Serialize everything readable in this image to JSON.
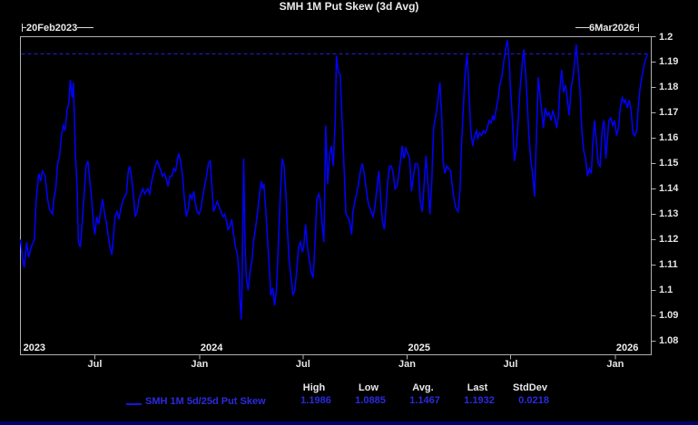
{
  "title": "SMH 1M Put Skew (3d Avg)",
  "range": {
    "start_label": "20Feb2023",
    "end_label": "6Mar2026"
  },
  "legend": {
    "series_label": "SMH 1M 5d/25d Put Skew"
  },
  "stats": {
    "headers": [
      "High",
      "Low",
      "Avg.",
      "Last",
      "StdDev"
    ],
    "values": [
      "1.1986",
      "1.0885",
      "1.1467",
      "1.1932",
      "0.0218"
    ]
  },
  "colors": {
    "background": "#000000",
    "series_line": "#0202f2",
    "reference_line": "#2020d8",
    "frame": "#b0b0b0",
    "text": "#e8e8e8",
    "legend_text": "#2a2ae0",
    "bottom_strip": "#00006a"
  },
  "chart_data": {
    "type": "line",
    "title": "SMH 1M Put Skew (3d Avg)",
    "series_name": "SMH 1M 5d/25d Put Skew",
    "x_range": {
      "start": "2023-02-20",
      "end": "2026-03-06"
    },
    "ylim": [
      1.0746,
      1.2
    ],
    "grid": false,
    "y_ticks": [
      {
        "v": 1.2,
        "label": "1.2"
      },
      {
        "v": 1.19,
        "label": "1.19"
      },
      {
        "v": 1.18,
        "label": "1.18"
      },
      {
        "v": 1.17,
        "label": "1.17"
      },
      {
        "v": 1.16,
        "label": "1.16"
      },
      {
        "v": 1.15,
        "label": "1.15"
      },
      {
        "v": 1.14,
        "label": "1.14"
      },
      {
        "v": 1.13,
        "label": "1.13"
      },
      {
        "v": 1.12,
        "label": "1.12"
      },
      {
        "v": 1.11,
        "label": "1.11"
      },
      {
        "v": 1.1,
        "label": "1.1"
      },
      {
        "v": 1.09,
        "label": "1.09"
      },
      {
        "v": 1.08,
        "label": "1.08"
      }
    ],
    "x_ticks": [
      {
        "t": 0.118,
        "label": "Jul"
      },
      {
        "t": 0.284,
        "label": "Jan"
      },
      {
        "t": 0.448,
        "label": "Jul"
      },
      {
        "t": 0.613,
        "label": "Jan"
      },
      {
        "t": 0.777,
        "label": "Jul"
      },
      {
        "t": 0.943,
        "label": "Jan"
      }
    ],
    "year_labels": [
      {
        "t": 0.003,
        "label": "2023"
      },
      {
        "t": 0.284,
        "label": "2024"
      },
      {
        "t": 0.613,
        "label": "2025"
      },
      {
        "t": 0.943,
        "label": "2026"
      }
    ],
    "reference_line": {
      "value": 1.1932,
      "meaning": "Last",
      "style": "dashed"
    },
    "high": 1.1986,
    "low": 1.0885,
    "avg": 1.1467,
    "last": 1.1932,
    "stddev": 0.0218,
    "points": [
      [
        0.0,
        1.12
      ],
      [
        0.003,
        1.113
      ],
      [
        0.006,
        1.109
      ],
      [
        0.01,
        1.119
      ],
      [
        0.013,
        1.113
      ],
      [
        0.017,
        1.117
      ],
      [
        0.022,
        1.12
      ],
      [
        0.025,
        1.136
      ],
      [
        0.029,
        1.146
      ],
      [
        0.032,
        1.143
      ],
      [
        0.035,
        1.147
      ],
      [
        0.039,
        1.145
      ],
      [
        0.043,
        1.136
      ],
      [
        0.046,
        1.132
      ],
      [
        0.051,
        1.13
      ],
      [
        0.053,
        1.136
      ],
      [
        0.056,
        1.14
      ],
      [
        0.059,
        1.15
      ],
      [
        0.062,
        1.153
      ],
      [
        0.065,
        1.161
      ],
      [
        0.068,
        1.165
      ],
      [
        0.071,
        1.163
      ],
      [
        0.074,
        1.171
      ],
      [
        0.077,
        1.174
      ],
      [
        0.079,
        1.183
      ],
      [
        0.082,
        1.176
      ],
      [
        0.084,
        1.182
      ],
      [
        0.087,
        1.154
      ],
      [
        0.09,
        1.14
      ],
      [
        0.092,
        1.119
      ],
      [
        0.095,
        1.117
      ],
      [
        0.098,
        1.127
      ],
      [
        0.101,
        1.138
      ],
      [
        0.104,
        1.149
      ],
      [
        0.107,
        1.151
      ],
      [
        0.11,
        1.143
      ],
      [
        0.113,
        1.136
      ],
      [
        0.116,
        1.126
      ],
      [
        0.118,
        1.122
      ],
      [
        0.121,
        1.129
      ],
      [
        0.124,
        1.126
      ],
      [
        0.127,
        1.131
      ],
      [
        0.13,
        1.136
      ],
      [
        0.133,
        1.131
      ],
      [
        0.136,
        1.127
      ],
      [
        0.139,
        1.122
      ],
      [
        0.142,
        1.117
      ],
      [
        0.145,
        1.114
      ],
      [
        0.147,
        1.12
      ],
      [
        0.15,
        1.129
      ],
      [
        0.153,
        1.131
      ],
      [
        0.156,
        1.128
      ],
      [
        0.159,
        1.132
      ],
      [
        0.162,
        1.135
      ],
      [
        0.165,
        1.137
      ],
      [
        0.168,
        1.138
      ],
      [
        0.171,
        1.147
      ],
      [
        0.173,
        1.149
      ],
      [
        0.176,
        1.145
      ],
      [
        0.179,
        1.138
      ],
      [
        0.182,
        1.129
      ],
      [
        0.185,
        1.131
      ],
      [
        0.188,
        1.136
      ],
      [
        0.191,
        1.138
      ],
      [
        0.194,
        1.14
      ],
      [
        0.197,
        1.138
      ],
      [
        0.199,
        1.139
      ],
      [
        0.202,
        1.14
      ],
      [
        0.205,
        1.138
      ],
      [
        0.208,
        1.143
      ],
      [
        0.211,
        1.146
      ],
      [
        0.214,
        1.149
      ],
      [
        0.217,
        1.151
      ],
      [
        0.22,
        1.149
      ],
      [
        0.223,
        1.147
      ],
      [
        0.225,
        1.145
      ],
      [
        0.228,
        1.146
      ],
      [
        0.231,
        1.144
      ],
      [
        0.234,
        1.141
      ],
      [
        0.237,
        1.145
      ],
      [
        0.24,
        1.145
      ],
      [
        0.243,
        1.148
      ],
      [
        0.246,
        1.147
      ],
      [
        0.249,
        1.152
      ],
      [
        0.251,
        1.154
      ],
      [
        0.254,
        1.151
      ],
      [
        0.257,
        1.145
      ],
      [
        0.26,
        1.136
      ],
      [
        0.263,
        1.129
      ],
      [
        0.266,
        1.132
      ],
      [
        0.269,
        1.138
      ],
      [
        0.272,
        1.136
      ],
      [
        0.275,
        1.139
      ],
      [
        0.277,
        1.135
      ],
      [
        0.28,
        1.131
      ],
      [
        0.283,
        1.13
      ],
      [
        0.286,
        1.132
      ],
      [
        0.289,
        1.137
      ],
      [
        0.292,
        1.141
      ],
      [
        0.295,
        1.145
      ],
      [
        0.298,
        1.15
      ],
      [
        0.301,
        1.151
      ],
      [
        0.303,
        1.143
      ],
      [
        0.306,
        1.131
      ],
      [
        0.309,
        1.133
      ],
      [
        0.312,
        1.135
      ],
      [
        0.315,
        1.133
      ],
      [
        0.318,
        1.131
      ],
      [
        0.321,
        1.129
      ],
      [
        0.324,
        1.13
      ],
      [
        0.327,
        1.127
      ],
      [
        0.329,
        1.124
      ],
      [
        0.332,
        1.125
      ],
      [
        0.335,
        1.128
      ],
      [
        0.338,
        1.122
      ],
      [
        0.341,
        1.117
      ],
      [
        0.344,
        1.114
      ],
      [
        0.347,
        1.105
      ],
      [
        0.348,
        1.096
      ],
      [
        0.35,
        1.0885
      ],
      [
        0.351,
        1.097
      ],
      [
        0.354,
        1.152
      ],
      [
        0.356,
        1.119
      ],
      [
        0.358,
        1.105
      ],
      [
        0.361,
        1.1
      ],
      [
        0.364,
        1.107
      ],
      [
        0.367,
        1.112
      ],
      [
        0.37,
        1.12
      ],
      [
        0.373,
        1.125
      ],
      [
        0.376,
        1.131
      ],
      [
        0.379,
        1.138
      ],
      [
        0.382,
        1.143
      ],
      [
        0.384,
        1.14
      ],
      [
        0.386,
        1.142
      ],
      [
        0.389,
        1.131
      ],
      [
        0.392,
        1.119
      ],
      [
        0.395,
        1.107
      ],
      [
        0.397,
        1.098
      ],
      [
        0.4,
        1.101
      ],
      [
        0.403,
        1.094
      ],
      [
        0.406,
        1.101
      ],
      [
        0.409,
        1.119
      ],
      [
        0.412,
        1.137
      ],
      [
        0.415,
        1.152
      ],
      [
        0.418,
        1.149
      ],
      [
        0.421,
        1.137
      ],
      [
        0.423,
        1.125
      ],
      [
        0.426,
        1.112
      ],
      [
        0.429,
        1.105
      ],
      [
        0.432,
        1.098
      ],
      [
        0.435,
        1.1
      ],
      [
        0.438,
        1.108
      ],
      [
        0.441,
        1.117
      ],
      [
        0.444,
        1.119
      ],
      [
        0.447,
        1.115
      ],
      [
        0.449,
        1.117
      ],
      [
        0.452,
        1.126
      ],
      [
        0.455,
        1.117
      ],
      [
        0.458,
        1.112
      ],
      [
        0.461,
        1.107
      ],
      [
        0.464,
        1.105
      ],
      [
        0.467,
        1.119
      ],
      [
        0.47,
        1.136
      ],
      [
        0.473,
        1.138
      ],
      [
        0.475,
        1.136
      ],
      [
        0.478,
        1.127
      ],
      [
        0.481,
        1.119
      ],
      [
        0.484,
        1.165
      ],
      [
        0.487,
        1.142
      ],
      [
        0.49,
        1.153
      ],
      [
        0.493,
        1.157
      ],
      [
        0.496,
        1.149
      ],
      [
        0.499,
        1.167
      ],
      [
        0.501,
        1.1925
      ],
      [
        0.504,
        1.186
      ],
      [
        0.507,
        1.185
      ],
      [
        0.51,
        1.167
      ],
      [
        0.513,
        1.149
      ],
      [
        0.516,
        1.13
      ],
      [
        0.519,
        1.129
      ],
      [
        0.522,
        1.127
      ],
      [
        0.525,
        1.122
      ],
      [
        0.527,
        1.131
      ],
      [
        0.53,
        1.135
      ],
      [
        0.533,
        1.138
      ],
      [
        0.536,
        1.142
      ],
      [
        0.539,
        1.147
      ],
      [
        0.542,
        1.15
      ],
      [
        0.545,
        1.146
      ],
      [
        0.548,
        1.14
      ],
      [
        0.551,
        1.135
      ],
      [
        0.553,
        1.133
      ],
      [
        0.556,
        1.131
      ],
      [
        0.559,
        1.129
      ],
      [
        0.562,
        1.133
      ],
      [
        0.565,
        1.14
      ],
      [
        0.568,
        1.147
      ],
      [
        0.571,
        1.137
      ],
      [
        0.574,
        1.127
      ],
      [
        0.577,
        1.124
      ],
      [
        0.579,
        1.131
      ],
      [
        0.582,
        1.142
      ],
      [
        0.585,
        1.149
      ],
      [
        0.588,
        1.149
      ],
      [
        0.591,
        1.146
      ],
      [
        0.594,
        1.14
      ],
      [
        0.597,
        1.141
      ],
      [
        0.6,
        1.146
      ],
      [
        0.603,
        1.152
      ],
      [
        0.605,
        1.157
      ],
      [
        0.608,
        1.152
      ],
      [
        0.611,
        1.156
      ],
      [
        0.614,
        1.154
      ],
      [
        0.617,
        1.152
      ],
      [
        0.62,
        1.139
      ],
      [
        0.623,
        1.145
      ],
      [
        0.626,
        1.15
      ],
      [
        0.629,
        1.15
      ],
      [
        0.631,
        1.148
      ],
      [
        0.634,
        1.135
      ],
      [
        0.637,
        1.131
      ],
      [
        0.64,
        1.142
      ],
      [
        0.643,
        1.153
      ],
      [
        0.646,
        1.142
      ],
      [
        0.649,
        1.13
      ],
      [
        0.652,
        1.142
      ],
      [
        0.655,
        1.164
      ],
      [
        0.657,
        1.167
      ],
      [
        0.66,
        1.171
      ],
      [
        0.665,
        1.182
      ],
      [
        0.668,
        1.167
      ],
      [
        0.67,
        1.151
      ],
      [
        0.673,
        1.146
      ],
      [
        0.676,
        1.149
      ],
      [
        0.679,
        1.148
      ],
      [
        0.682,
        1.147
      ],
      [
        0.685,
        1.14
      ],
      [
        0.688,
        1.135
      ],
      [
        0.691,
        1.132
      ],
      [
        0.694,
        1.131
      ],
      [
        0.697,
        1.14
      ],
      [
        0.699,
        1.156
      ],
      [
        0.702,
        1.172
      ],
      [
        0.705,
        1.186
      ],
      [
        0.708,
        1.193
      ],
      [
        0.711,
        1.179
      ],
      [
        0.714,
        1.163
      ],
      [
        0.717,
        1.157
      ],
      [
        0.72,
        1.161
      ],
      [
        0.723,
        1.163
      ],
      [
        0.725,
        1.16
      ],
      [
        0.728,
        1.162
      ],
      [
        0.731,
        1.161
      ],
      [
        0.734,
        1.163
      ],
      [
        0.737,
        1.162
      ],
      [
        0.74,
        1.164
      ],
      [
        0.743,
        1.167
      ],
      [
        0.746,
        1.166
      ],
      [
        0.749,
        1.169
      ],
      [
        0.751,
        1.167
      ],
      [
        0.754,
        1.171
      ],
      [
        0.757,
        1.175
      ],
      [
        0.76,
        1.181
      ],
      [
        0.763,
        1.184
      ],
      [
        0.766,
        1.19
      ],
      [
        0.769,
        1.195
      ],
      [
        0.772,
        1.1986
      ],
      [
        0.775,
        1.19
      ],
      [
        0.777,
        1.179
      ],
      [
        0.78,
        1.167
      ],
      [
        0.783,
        1.151
      ],
      [
        0.786,
        1.156
      ],
      [
        0.789,
        1.167
      ],
      [
        0.792,
        1.179
      ],
      [
        0.795,
        1.188
      ],
      [
        0.798,
        1.195
      ],
      [
        0.801,
        1.185
      ],
      [
        0.803,
        1.176
      ],
      [
        0.806,
        1.161
      ],
      [
        0.809,
        1.151
      ],
      [
        0.812,
        1.146
      ],
      [
        0.815,
        1.137
      ],
      [
        0.818,
        1.161
      ],
      [
        0.821,
        1.184
      ],
      [
        0.824,
        1.176
      ],
      [
        0.827,
        1.169
      ],
      [
        0.829,
        1.164
      ],
      [
        0.832,
        1.172
      ],
      [
        0.835,
        1.169
      ],
      [
        0.838,
        1.17
      ],
      [
        0.841,
        1.167
      ],
      [
        0.844,
        1.171
      ],
      [
        0.847,
        1.168
      ],
      [
        0.85,
        1.164
      ],
      [
        0.853,
        1.169
      ],
      [
        0.855,
        1.179
      ],
      [
        0.858,
        1.187
      ],
      [
        0.861,
        1.178
      ],
      [
        0.864,
        1.181
      ],
      [
        0.867,
        1.175
      ],
      [
        0.87,
        1.169
      ],
      [
        0.873,
        1.18
      ],
      [
        0.876,
        1.184
      ],
      [
        0.879,
        1.191
      ],
      [
        0.881,
        1.197
      ],
      [
        0.884,
        1.188
      ],
      [
        0.887,
        1.179
      ],
      [
        0.89,
        1.163
      ],
      [
        0.893,
        1.155
      ],
      [
        0.896,
        1.152
      ],
      [
        0.899,
        1.145
      ],
      [
        0.902,
        1.148
      ],
      [
        0.905,
        1.146
      ],
      [
        0.907,
        1.157
      ],
      [
        0.91,
        1.167
      ],
      [
        0.913,
        1.159
      ],
      [
        0.916,
        1.15
      ],
      [
        0.919,
        1.149
      ],
      [
        0.922,
        1.163
      ],
      [
        0.925,
        1.167
      ],
      [
        0.928,
        1.152
      ],
      [
        0.931,
        1.161
      ],
      [
        0.933,
        1.167
      ],
      [
        0.936,
        1.168
      ],
      [
        0.939,
        1.165
      ],
      [
        0.942,
        1.167
      ],
      [
        0.945,
        1.161
      ],
      [
        0.948,
        1.164
      ],
      [
        0.951,
        1.172
      ],
      [
        0.954,
        1.176
      ],
      [
        0.957,
        1.174
      ],
      [
        0.959,
        1.175
      ],
      [
        0.962,
        1.172
      ],
      [
        0.965,
        1.175
      ],
      [
        0.968,
        1.171
      ],
      [
        0.971,
        1.162
      ],
      [
        0.974,
        1.161
      ],
      [
        0.977,
        1.163
      ],
      [
        0.979,
        1.171
      ],
      [
        0.982,
        1.179
      ],
      [
        0.985,
        1.184
      ],
      [
        0.988,
        1.188
      ],
      [
        0.991,
        1.191
      ],
      [
        0.994,
        1.1932
      ]
    ]
  }
}
